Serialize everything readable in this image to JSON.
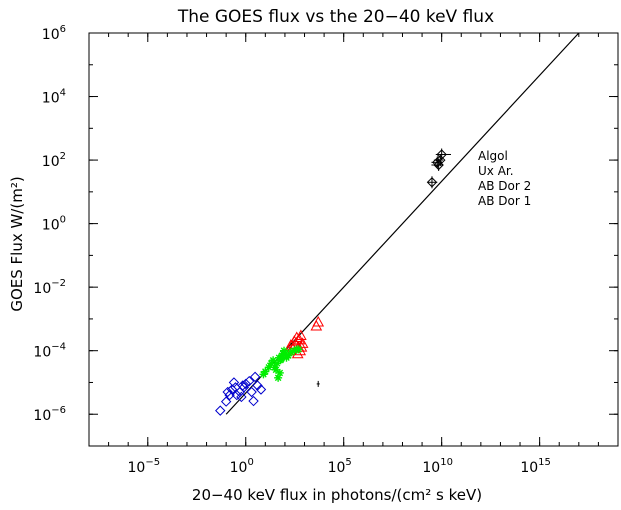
{
  "chart_data": {
    "type": "scatter",
    "title": "The GOES flux vs the 20−40 keV flux",
    "xlabel": "20−40 keV flux in photons/(cm² s keV)",
    "ylabel": "GOES Flux W/(m²)",
    "x_scale": "log",
    "y_scale": "log",
    "xlim": [
      1e-08,
      1e+19
    ],
    "ylim": [
      1e-07,
      1000000.0
    ],
    "x_ticks": [
      {
        "base": "10",
        "exp": "−5",
        "value": 1e-05
      },
      {
        "base": "10",
        "exp": "0",
        "value": 1
      },
      {
        "base": "10",
        "exp": "5",
        "value": 100000.0
      },
      {
        "base": "10",
        "exp": "10",
        "value": 10000000000.0
      },
      {
        "base": "10",
        "exp": "15",
        "value": 1000000000000000.0
      }
    ],
    "y_ticks": [
      {
        "base": "10",
        "exp": "−6",
        "value": 1e-06
      },
      {
        "base": "10",
        "exp": "−4",
        "value": 0.0001
      },
      {
        "base": "10",
        "exp": "−2",
        "value": 0.01
      },
      {
        "base": "10",
        "exp": "0",
        "value": 1
      },
      {
        "base": "10",
        "exp": "2",
        "value": 100.0
      },
      {
        "base": "10",
        "exp": "4",
        "value": 10000.0
      },
      {
        "base": "10",
        "exp": "6",
        "value": 1000000.0
      }
    ],
    "legend_position": "right, middle-upper",
    "legend_entries": [
      "Algol",
      "Ux Ar.",
      "AB Dor 2",
      "AB Dor 1"
    ],
    "fit_line": {
      "x": [
        0.1,
        1e+17
      ],
      "y": [
        1e-06,
        1000000.0
      ]
    },
    "series": [
      {
        "marker": "diamond-with-errorbars",
        "color": "#000000",
        "points": [
          [
            3200000000.0,
            20,
            2000000000.0,
            6000000000.0
          ],
          [
            6000000000.0,
            85,
            3000000000.0,
            9000000000.0
          ],
          [
            7000000000.0,
            70,
            3000000000.0,
            12000000000.0
          ],
          [
            8500000000.0,
            100,
            4000000000.0,
            12000000000.0
          ],
          [
            10000000000.0,
            150,
            5000000000.0,
            30000000000.0
          ]
        ]
      },
      {
        "marker": "triangle",
        "color": "#ff0000",
        "points": [
          [
            150,
            0.0001
          ],
          [
            200,
            0.00015
          ],
          [
            300,
            0.0002
          ],
          [
            400,
            0.00026
          ],
          [
            250,
            0.00012
          ],
          [
            500,
            0.00013
          ],
          [
            600,
            0.0001
          ],
          [
            350,
            0.00016
          ],
          [
            700,
            0.00013
          ],
          [
            800,
            0.00017
          ],
          [
            450,
            8e-05
          ],
          [
            550,
            0.00022
          ],
          [
            5000,
            0.0008
          ],
          [
            4000,
            0.0006
          ],
          [
            650,
            0.0003
          ]
        ]
      },
      {
        "marker": "asterisk",
        "color": "#00ee00",
        "points": [
          [
            15,
            3e-05
          ],
          [
            20,
            4e-05
          ],
          [
            25,
            5e-05
          ],
          [
            30,
            3e-05
          ],
          [
            35,
            2.5e-05
          ],
          [
            40,
            4e-05
          ],
          [
            50,
            6e-05
          ],
          [
            60,
            5e-05
          ],
          [
            70,
            7e-05
          ],
          [
            80,
            8e-05
          ],
          [
            90,
            0.0001
          ],
          [
            100,
            8e-05
          ],
          [
            120,
            6e-05
          ],
          [
            150,
            7e-05
          ],
          [
            200,
            9e-05
          ],
          [
            300,
            0.0001
          ],
          [
            400,
            0.00011
          ],
          [
            8,
            1.8e-05
          ],
          [
            10,
            2.2e-05
          ],
          [
            45,
            1.4e-05
          ],
          [
            55,
            2e-05
          ],
          [
            65,
            5.5e-05
          ],
          [
            500,
            0.00011
          ]
        ]
      },
      {
        "marker": "diamond",
        "color": "#0000cc",
        "points": [
          [
            0.05,
            1.3e-06
          ],
          [
            0.1,
            2.5e-06
          ],
          [
            0.15,
            4e-06
          ],
          [
            0.2,
            6e-06
          ],
          [
            0.3,
            7e-06
          ],
          [
            0.35,
            4e-06
          ],
          [
            0.5,
            5e-06
          ],
          [
            0.7,
            8e-06
          ],
          [
            1.0,
            9e-06
          ],
          [
            1.5,
            1.1e-05
          ],
          [
            2,
            5e-06
          ],
          [
            2.5,
            2.6e-06
          ],
          [
            4,
            8e-06
          ],
          [
            6,
            6e-06
          ],
          [
            0.25,
            1e-05
          ],
          [
            0.6,
            3.5e-06
          ],
          [
            0.12,
            5e-06
          ],
          [
            3,
            1.5e-05
          ],
          [
            0.8,
            7e-06
          ]
        ]
      },
      {
        "marker": "cross",
        "color": "#000000",
        "points": [
          [
            5000,
            9e-06
          ]
        ]
      }
    ]
  }
}
